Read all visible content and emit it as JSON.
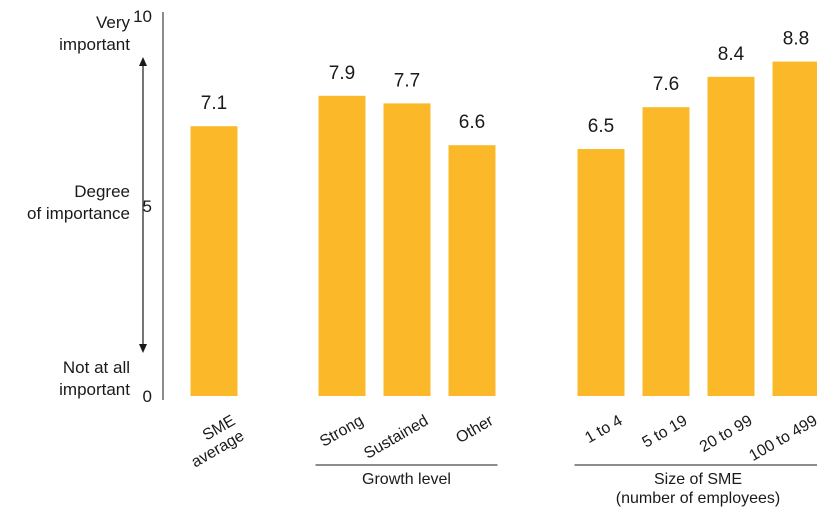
{
  "chart_data": {
    "type": "bar",
    "categories": [
      "SME average",
      "Strong",
      "Sustained",
      "Other",
      "1 to 4",
      "5 to 19",
      "20 to 99",
      "100 to 499"
    ],
    "values": [
      7.1,
      7.9,
      7.7,
      6.6,
      6.5,
      7.6,
      8.4,
      8.8
    ],
    "value_labels": [
      "7.1",
      "7.9",
      "7.7",
      "6.6",
      "6.5",
      "7.6",
      "8.4",
      "8.8"
    ],
    "category_lines": [
      [
        "SME",
        "average"
      ],
      [
        "Strong"
      ],
      [
        "Sustained"
      ],
      [
        "Other"
      ],
      [
        "1 to 4"
      ],
      [
        "5 to 19"
      ],
      [
        "20 to 99"
      ],
      [
        "100 to 499"
      ]
    ],
    "groups": [
      {
        "lines": [
          "Growth level"
        ],
        "members": [
          1,
          2,
          3
        ]
      },
      {
        "lines": [
          "Size of SME",
          "(number of employees)"
        ],
        "members": [
          4,
          5,
          6,
          7
        ]
      }
    ],
    "ylim": [
      0,
      10
    ],
    "yticks": [
      "0",
      "5",
      "10"
    ],
    "left_labels": {
      "top": [
        "Very",
        "important"
      ],
      "middle": [
        "Degree",
        "of importance"
      ],
      "bottom": [
        "Not at all",
        "important"
      ]
    },
    "grid": false,
    "legend": "none",
    "bar_color": "#FBB829",
    "axis_color": "#1a1a1a"
  }
}
